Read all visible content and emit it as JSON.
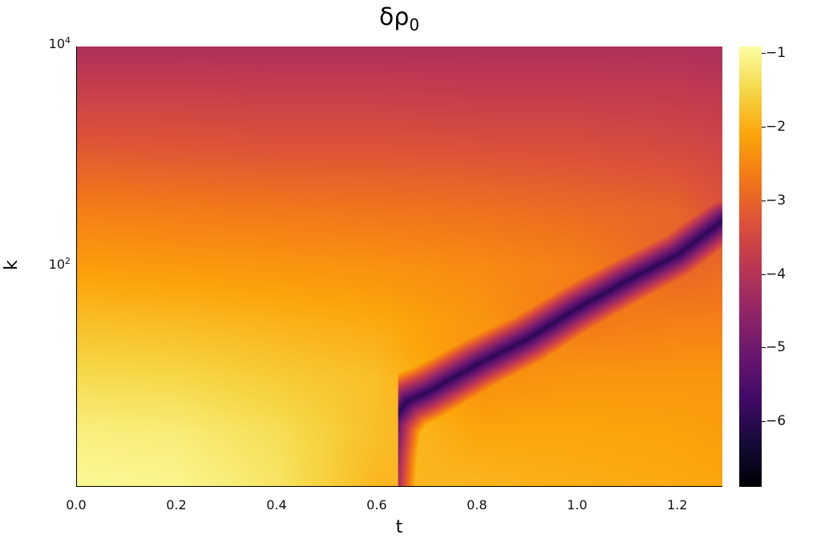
{
  "chart_data": {
    "type": "heatmap",
    "title": "δρ",
    "title_subscript": "0",
    "xlabel": "t",
    "ylabel": "k",
    "xlim": [
      0,
      1.29
    ],
    "ylim": [
      1,
      10000
    ],
    "yscale": "log",
    "x_ticks": [
      "0.0",
      "0.2",
      "0.4",
      "0.6",
      "0.8",
      "1.0",
      "1.2"
    ],
    "x_tick_values": [
      0,
      0.2,
      0.4,
      0.6,
      0.8,
      1.0,
      1.2
    ],
    "y_ticks": [
      {
        "base": "10",
        "exp": "4",
        "value": 10000
      },
      {
        "base": "10",
        "exp": "2",
        "value": 100
      }
    ],
    "colormap": "inferno",
    "colorbar": {
      "range": [
        -6.89,
        -0.91
      ],
      "ticks": [
        "−1",
        "−2",
        "−3",
        "−4",
        "−5",
        "−6"
      ],
      "tick_values": [
        -1,
        -2,
        -3,
        -4,
        -5,
        -6
      ]
    },
    "grid_t": [
      0,
      0.2,
      0.4,
      0.6,
      0.8,
      1.0,
      1.2,
      1.29
    ],
    "grid_log10k": [
      0,
      0.5,
      1,
      1.5,
      2,
      2.5,
      3,
      3.5,
      4
    ],
    "values": [
      [
        -1.0,
        -1.05,
        -1.3,
        -1.9,
        -1.9,
        -2.0,
        -2.05,
        -2.1
      ],
      [
        -1.15,
        -1.2,
        -1.4,
        -1.8,
        -2.1,
        -2.1,
        -2.15,
        -2.2
      ],
      [
        -1.45,
        -1.5,
        -1.65,
        -1.8,
        -2.4,
        -2.3,
        -2.3,
        -2.3
      ],
      [
        -1.8,
        -1.85,
        -1.95,
        -2.05,
        -2.3,
        -2.7,
        -2.6,
        -2.6
      ],
      [
        -2.2,
        -2.25,
        -2.3,
        -2.35,
        -2.45,
        -2.6,
        -3.0,
        -2.9
      ],
      [
        -2.6,
        -2.65,
        -2.7,
        -2.75,
        -2.8,
        -2.9,
        -3.0,
        -3.3
      ],
      [
        -3.1,
        -3.15,
        -3.2,
        -3.2,
        -3.25,
        -3.3,
        -3.4,
        -3.5
      ],
      [
        -3.6,
        -3.6,
        -3.65,
        -3.65,
        -3.7,
        -3.7,
        -3.75,
        -3.8
      ],
      [
        -4.1,
        -4.1,
        -4.1,
        -4.1,
        -4.1,
        -4.1,
        -4.1,
        -4.15
      ]
    ],
    "minimum_curve": [
      [
        0.615,
        1
      ],
      [
        0.62,
        2
      ],
      [
        0.63,
        4
      ],
      [
        0.66,
        6
      ],
      [
        0.7,
        7.2
      ],
      [
        0.8,
        13
      ],
      [
        0.9,
        22
      ],
      [
        1.0,
        42
      ],
      [
        1.1,
        75
      ],
      [
        1.2,
        129
      ],
      [
        1.29,
        263
      ]
    ],
    "minimum_value": -6.0
  }
}
